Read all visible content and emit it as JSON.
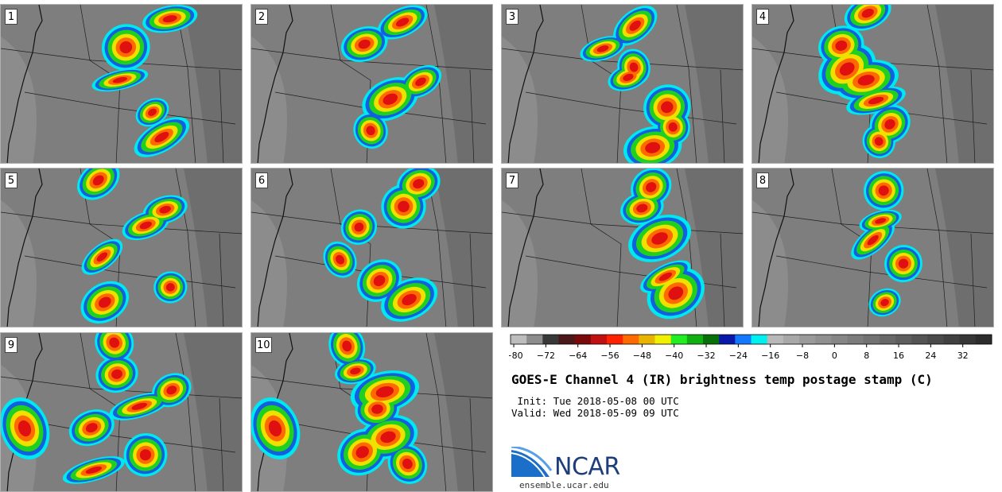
{
  "panels": [
    {
      "label": "1"
    },
    {
      "label": "2"
    },
    {
      "label": "3"
    },
    {
      "label": "4"
    },
    {
      "label": "5"
    },
    {
      "label": "6"
    },
    {
      "label": "7"
    },
    {
      "label": "8"
    },
    {
      "label": "9"
    },
    {
      "label": "10"
    }
  ],
  "colorbar": {
    "tick_labels": [
      "-80",
      "-72",
      "-64",
      "-56",
      "-48",
      "-40",
      "-32",
      "-24",
      "-16",
      "-8",
      "0",
      "8",
      "16",
      "24",
      "32"
    ],
    "colors": [
      "#bdbdbd",
      "#8d8d8d",
      "#383838",
      "#4a1818",
      "#7a0a0a",
      "#c01010",
      "#ff2200",
      "#ff6a00",
      "#e8b400",
      "#f0f000",
      "#22ee22",
      "#10b010",
      "#087008",
      "#0818a8",
      "#1478ff",
      "#00f0f0",
      "#b8b8b8",
      "#a8a8a8",
      "#9a9a9a",
      "#909090",
      "#868686",
      "#7c7c7c",
      "#727272",
      "#686868",
      "#5e5e5e",
      "#545454",
      "#4a4a4a",
      "#404040",
      "#363636",
      "#2c2c2c"
    ]
  },
  "title": "GOES-E Channel 4 (IR) brightness temp postage stamp (C)",
  "init_line": " Init: Tue 2018-05-08 00 UTC",
  "valid_line": "Valid: Wed 2018-05-09 09 UTC",
  "logo": {
    "text": "NCAR",
    "url": "ensemble.ucar.edu"
  },
  "map_colors": {
    "background": "#7e7e7e",
    "coast": "#111111",
    "border": "#1e1e1e",
    "cold_red": "#e01010",
    "orange": "#ff6a00",
    "yellow": "#f0e000",
    "green": "#20d020",
    "blue": "#1060e0",
    "cyan": "#00e8f0"
  }
}
